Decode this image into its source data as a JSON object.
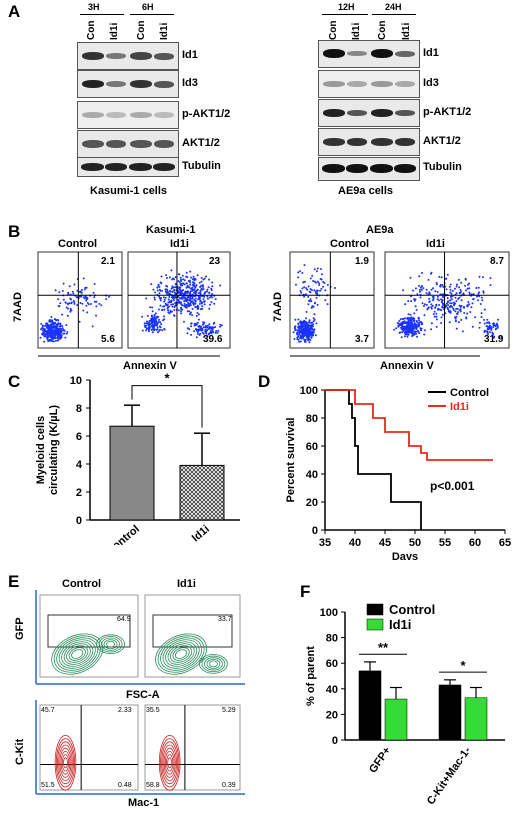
{
  "panel_letters": [
    "A",
    "B",
    "C",
    "D",
    "E",
    "F"
  ],
  "panelA": {
    "left": {
      "times": [
        "3H",
        "6H"
      ],
      "lanes": [
        "Con",
        "Id1i",
        "Con",
        "Id1i"
      ],
      "proteins": [
        "Id1",
        "Id3",
        "p-AKT1/2",
        "AKT1/2",
        "Tubulin"
      ],
      "caption": "Kasumi-1 cells"
    },
    "right": {
      "times": [
        "12H",
        "24H"
      ],
      "lanes": [
        "Con",
        "Id1i",
        "Con",
        "Id1i"
      ],
      "proteins": [
        "Id1",
        "Id3",
        "p-AKT1/2",
        "AKT1/2",
        "Tubulin"
      ],
      "caption": "AE9a cells"
    }
  },
  "panelB": {
    "cell_lines": [
      "Kasumi-1",
      "AE9a"
    ],
    "conditions": [
      "Control",
      "Id1i",
      "Control",
      "Id1i"
    ],
    "xlabel": "Annexin V",
    "ylabel": "7AAD",
    "quadrants": [
      {
        "ur": "2.1",
        "lr": "5.6"
      },
      {
        "ur": "23",
        "lr": "39.6"
      },
      {
        "ur": "1.9",
        "lr": "3.7"
      },
      {
        "ur": "8.7",
        "lr": "31.9"
      }
    ]
  },
  "chart_data": [
    {
      "type": "bar",
      "panel": "C",
      "categories": [
        "Control",
        "Id1i"
      ],
      "values": [
        6.7,
        3.9
      ],
      "errors": [
        1.5,
        2.3
      ],
      "ylabel": "Myeloid cells circulating (K/µL)",
      "ylim": [
        0,
        10
      ],
      "yticks": [
        "0",
        "2",
        "4",
        "6",
        "8",
        "10"
      ],
      "significance": "*"
    },
    {
      "type": "line",
      "panel": "D",
      "xlabel": "Days",
      "ylabel": "Percent survival",
      "xlim": [
        35,
        65
      ],
      "ylim": [
        0,
        100
      ],
      "xticks": [
        "35",
        "40",
        "45",
        "50",
        "55",
        "60",
        "65"
      ],
      "yticks": [
        "0",
        "20",
        "40",
        "60",
        "80",
        "100"
      ],
      "series": [
        {
          "name": "Control",
          "color": "#000000",
          "points": [
            [
              35,
              100
            ],
            [
              39,
              100
            ],
            [
              39,
              90
            ],
            [
              39.5,
              90
            ],
            [
              39.5,
              80
            ],
            [
              40,
              80
            ],
            [
              40,
              60
            ],
            [
              40.5,
              60
            ],
            [
              40.5,
              40
            ],
            [
              46,
              40
            ],
            [
              46,
              20
            ],
            [
              51,
              20
            ],
            [
              51,
              0
            ]
          ]
        },
        {
          "name": "Id1i",
          "color": "#e8291c",
          "points": [
            [
              35,
              100
            ],
            [
              40,
              100
            ],
            [
              40,
              90
            ],
            [
              43,
              90
            ],
            [
              43,
              80
            ],
            [
              45,
              80
            ],
            [
              45,
              70
            ],
            [
              49,
              70
            ],
            [
              49,
              60
            ],
            [
              51,
              60
            ],
            [
              51,
              55
            ],
            [
              52,
              55
            ],
            [
              52,
              50
            ],
            [
              63,
              50
            ]
          ]
        }
      ],
      "annotation": "p<0.001"
    },
    {
      "type": "bar",
      "panel": "F",
      "categories": [
        "GFP+",
        "C-Kit+Mac-1-"
      ],
      "series": [
        {
          "name": "Control",
          "color": "#000000",
          "values": [
            54,
            43
          ],
          "errors": [
            7,
            4
          ]
        },
        {
          "name": "Id1i",
          "color": "#33dd33",
          "values": [
            32,
            33
          ],
          "errors": [
            9,
            8
          ]
        }
      ],
      "ylabel": "% of parent",
      "ylim": [
        0,
        100
      ],
      "yticks": [
        "0",
        "20",
        "40",
        "60",
        "80",
        "100"
      ],
      "significance": [
        "**",
        "*"
      ]
    }
  ],
  "panelE": {
    "conditions": [
      "Control",
      "Id1i"
    ],
    "top": {
      "xlabel": "FSC-A",
      "ylabel": "GFP",
      "gate_values": [
        "64.9",
        "33.7"
      ]
    },
    "bottom": {
      "xlabel": "Mac-1",
      "ylabel": "C-Kit",
      "quadrants": [
        {
          "ul": "45.7",
          "ur": "2.33",
          "ll": "51.5",
          "lr": "0.48"
        },
        {
          "ul": "35.5",
          "ur": "5.29",
          "ll": "58.8",
          "lr": "0.39"
        }
      ]
    }
  }
}
